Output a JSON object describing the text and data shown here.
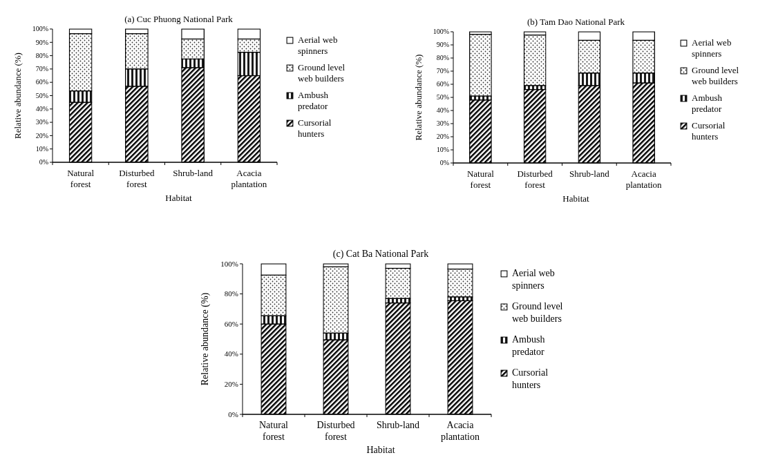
{
  "chart_data": [
    {
      "type": "bar",
      "title": "(a) Cuc Phuong National Park",
      "xlabel": "Habitat",
      "ylabel": "Relative abundance (%)",
      "categories": [
        "Natural forest",
        "Disturbed forest",
        "Shrub-land",
        "Acacia plantation"
      ],
      "stacked": true,
      "legend": "right",
      "ylim": [
        0,
        100
      ],
      "yticks": [
        {
          "value": 0,
          "label": "0%"
        },
        {
          "value": 10,
          "label": "10%"
        },
        {
          "value": 20,
          "label": "20%"
        },
        {
          "value": 30,
          "label": "30%"
        },
        {
          "value": 40,
          "label": "40%"
        },
        {
          "value": 50,
          "label": "50%"
        },
        {
          "value": 60,
          "label": "60%"
        },
        {
          "value": 70,
          "label": "70%"
        },
        {
          "value": 80,
          "label": "80%"
        },
        {
          "value": 90,
          "label": "90%"
        },
        {
          "value": 100,
          "label": "100%"
        }
      ],
      "series": [
        {
          "name": "Cursorial hunters",
          "color": "#000000",
          "values": [
            45,
            57,
            71,
            65
          ]
        },
        {
          "name": "Ambush predator",
          "color": "#1a1a1a",
          "values": [
            8.5,
            13,
            6.5,
            17.5
          ]
        },
        {
          "name": "Ground level web builders",
          "color": "#333333",
          "values": [
            43,
            26.5,
            15,
            10
          ]
        },
        {
          "name": "Aerial web spinners",
          "color": "#ffffff",
          "values": [
            3.5,
            3.5,
            7.5,
            7.5
          ]
        }
      ]
    },
    {
      "type": "bar",
      "title": "(b) Tam Dao National Park",
      "xlabel": "Habitat",
      "ylabel": "Relative abundance (%)",
      "categories": [
        "Natural forest",
        "Disturbed forest",
        "Shrub-land",
        "Acacia plantation"
      ],
      "stacked": true,
      "legend": "right",
      "ylim": [
        0,
        100
      ],
      "yticks": [
        {
          "value": 0,
          "label": "0%"
        },
        {
          "value": 10,
          "label": "10%"
        },
        {
          "value": 20,
          "label": "20%"
        },
        {
          "value": 30,
          "label": "30%"
        },
        {
          "value": 40,
          "label": "40%"
        },
        {
          "value": 50,
          "label": "50%"
        },
        {
          "value": 60,
          "label": "60%"
        },
        {
          "value": 70,
          "label": "70%"
        },
        {
          "value": 80,
          "label": "80%"
        },
        {
          "value": 90,
          "label": "90%"
        },
        {
          "value": 100,
          "label": "100%"
        }
      ],
      "series": [
        {
          "name": "Cursorial hunters",
          "color": "#000000",
          "values": [
            48,
            56,
            59,
            61
          ]
        },
        {
          "name": "Ambush predator",
          "color": "#1a1a1a",
          "values": [
            3,
            3,
            9.5,
            7.5
          ]
        },
        {
          "name": "Ground level web builders",
          "color": "#333333",
          "values": [
            47,
            38.5,
            25,
            25
          ]
        },
        {
          "name": "Aerial web spinners",
          "color": "#ffffff",
          "values": [
            2,
            2.5,
            6.5,
            6.5
          ]
        }
      ]
    },
    {
      "type": "bar",
      "title": "(c) Cat Ba National Park",
      "xlabel": "Habitat",
      "ylabel": "Relative abundance (%)",
      "categories": [
        "Natural forest",
        "Disturbed forest",
        "Shrub-land",
        "Acacia plantation"
      ],
      "stacked": true,
      "legend": "right",
      "ylim": [
        0,
        100
      ],
      "yticks": [
        {
          "value": 0,
          "label": "0%"
        },
        {
          "value": 20,
          "label": "20%"
        },
        {
          "value": 40,
          "label": "40%"
        },
        {
          "value": 60,
          "label": "60%"
        },
        {
          "value": 80,
          "label": "80%"
        },
        {
          "value": 100,
          "label": "100%"
        }
      ],
      "series": [
        {
          "name": "Cursorial hunters",
          "color": "#000000",
          "values": [
            60,
            49.5,
            74,
            75.5
          ]
        },
        {
          "name": "Ambush predator",
          "color": "#1a1a1a",
          "values": [
            5.5,
            4.5,
            3,
            2.5
          ]
        },
        {
          "name": "Ground level web builders",
          "color": "#333333",
          "values": [
            27,
            44,
            20,
            18.5
          ]
        },
        {
          "name": "Aerial web spinners",
          "color": "#ffffff",
          "values": [
            7.5,
            2,
            3,
            3.5
          ]
        }
      ]
    }
  ]
}
